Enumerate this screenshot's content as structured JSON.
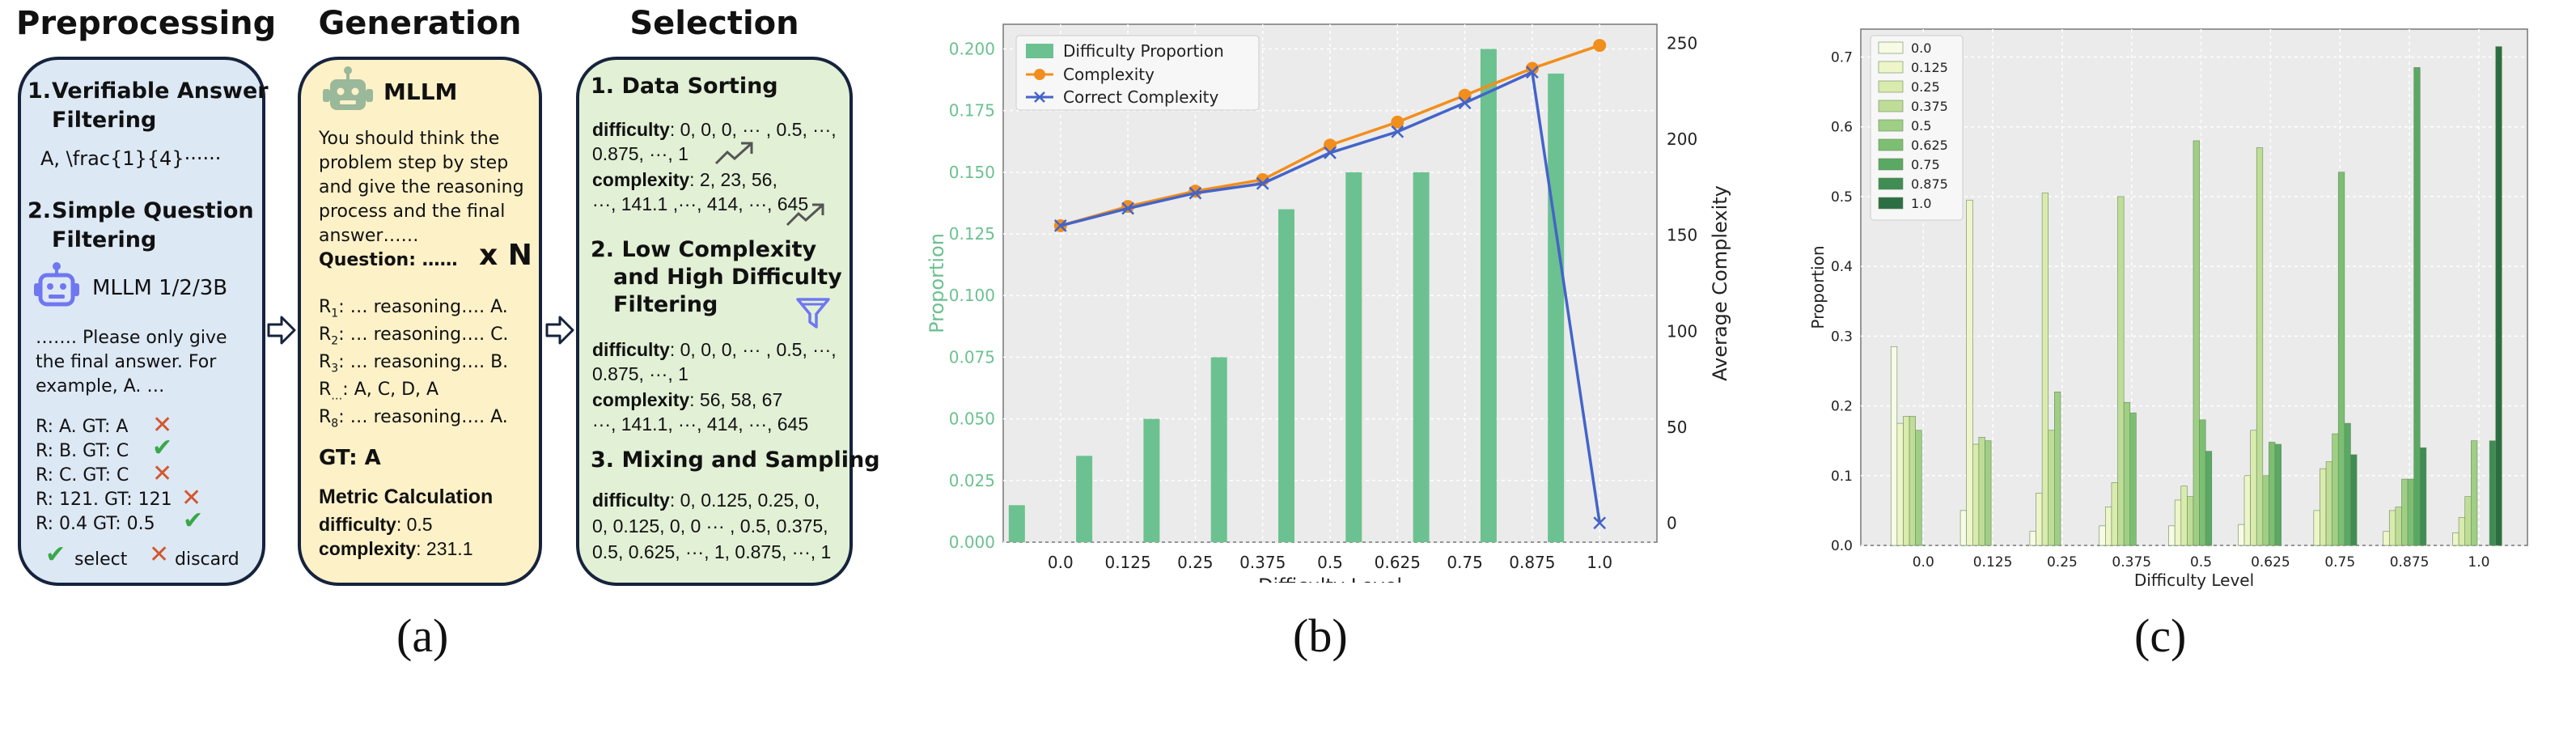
{
  "headings": {
    "preprocessing": "Preprocessing",
    "generation": "Generation",
    "selection": "Selection"
  },
  "captions": {
    "a": "(a)",
    "b": "(b)",
    "c": "(c)"
  },
  "preprocessing": {
    "s1_num": "1.",
    "s1_title_1": "Verifiable Answer",
    "s1_title_2": "Filtering",
    "s1_example": "A, \\frac{1}{4}······",
    "s2_num": "2.",
    "s2_title_1": "Simple Question",
    "s2_title_2": "Filtering",
    "model": "MLLM 1/2/3B",
    "prompt_1": "……. Please only give",
    "prompt_2": "the final answer. For",
    "prompt_3": "example, A. …",
    "results": [
      {
        "text": "R: A. GT: A",
        "mark": "✕"
      },
      {
        "text": "R: B. GT: C",
        "mark": "✔"
      },
      {
        "text": "R: C. GT: C",
        "mark": "✕"
      },
      {
        "text": "R: 121. GT: 121",
        "mark": "✕"
      },
      {
        "text": "R: 0.4 GT: 0.5",
        "mark": "✔"
      }
    ],
    "legend_select": "select",
    "legend_discard": "discard",
    "check_mark": "✔",
    "cross_mark": "✕"
  },
  "generation": {
    "model": "MLLM",
    "prompt": [
      "You should think the",
      "problem step by step",
      "and give the reasoning",
      "process and the final",
      "answer……"
    ],
    "question": "Question: ……",
    "times": "x N",
    "responses": [
      {
        "r": "R",
        "sub": "1",
        "text": ": … reasoning…. A."
      },
      {
        "r": "R",
        "sub": "2",
        "text": ": … reasoning…. C."
      },
      {
        "r": "R",
        "sub": "3",
        "text": ": … reasoning…. B."
      },
      {
        "r": "R",
        "sub": "…",
        "text": ":     A, C, D, A"
      },
      {
        "r": "R",
        "sub": "8",
        "text": ": … reasoning…. A."
      }
    ],
    "gt": "GT: A",
    "metric": "Metric Calculation",
    "difficulty_label": "difficulty",
    "difficulty_value": ": 0.5",
    "complexity_label": "complexity",
    "complexity_value": ": 231.1"
  },
  "selection": {
    "s1": "1. Data Sorting",
    "d1_label": "difficulty",
    "d1_l1": ": 0, 0, 0, ··· , 0.5, ···,",
    "d1_l2": "0.875, ···, 1",
    "c1_label": "complexity",
    "c1_l1": ": 2, 23, 56,",
    "c1_l2": "···, 141.1 ,···, 414, ···, 645",
    "s2_1": "2. Low Complexity",
    "s2_2": "and High Difficulty",
    "s2_3": "Filtering",
    "d2_label": "difficulty",
    "d2_l1": ": 0, 0, 0, ··· , 0.5, ···,",
    "d2_l2": "0.875, ···, 1",
    "c2_label": "complexity",
    "c2_l1": ": 56, 58, 67",
    "c2_l2": "···, 141.1, ···, 414, ···, 645",
    "s3": "3. Mixing and Sampling",
    "d3_label": "difficulty",
    "d3_l1": ": 0, 0.125, 0.25, 0,",
    "d3_l2": "0, 0.125, 0, 0 ··· , 0.5, 0.375,",
    "d3_l3": "0.5, 0.625, ···, 1, 0.875, ···, 1"
  },
  "chart_data": [
    {
      "type": "bar",
      "title": "",
      "xlabel": "Difficulty Level",
      "ylabel": "Proportion",
      "y2label": "Average Complexity",
      "categories": [
        "0.0",
        "0.125",
        "0.25",
        "0.375",
        "0.5",
        "0.625",
        "0.75",
        "0.875",
        "1.0"
      ],
      "ylim": [
        0,
        0.21
      ],
      "y2lim": [
        -10,
        260
      ],
      "yticks": [
        "0.000",
        "0.025",
        "0.050",
        "0.075",
        "0.100",
        "0.125",
        "0.150",
        "0.175",
        "0.200"
      ],
      "y2ticks": [
        "0",
        "50",
        "100",
        "150",
        "200",
        "250"
      ],
      "legend_position": "top-left",
      "grid": true,
      "series": [
        {
          "name": "Difficulty Proportion",
          "kind": "bar",
          "axis": "left",
          "color": "#6cc190",
          "values": [
            0.015,
            0.035,
            0.05,
            0.075,
            0.135,
            0.15,
            0.15,
            0.2,
            0.19
          ]
        },
        {
          "name": "Complexity",
          "kind": "line",
          "axis": "right",
          "color": "#f28e1c",
          "values": [
            155,
            165,
            173,
            179,
            197,
            209,
            223,
            237,
            249
          ]
        },
        {
          "name": "Correct Complexity",
          "kind": "line",
          "axis": "right",
          "color": "#4364c9",
          "values": [
            155,
            164,
            172,
            177,
            193,
            204,
            219,
            235,
            0
          ]
        }
      ]
    },
    {
      "type": "bar",
      "title": "",
      "xlabel": "Difficulty Level",
      "ylabel": "Proportion",
      "categories": [
        "0.0",
        "0.125",
        "0.25",
        "0.375",
        "0.5",
        "0.625",
        "0.75",
        "0.875",
        "1.0"
      ],
      "ylim": [
        0,
        0.74
      ],
      "yticks": [
        "0.0",
        "0.1",
        "0.2",
        "0.3",
        "0.4",
        "0.5",
        "0.6",
        "0.7"
      ],
      "legend_position": "top-left",
      "grid": true,
      "series": [
        {
          "name": "0.0",
          "color": "#f7fbe6",
          "values": [
            0.285,
            0.05,
            0.02,
            0.028,
            0.028,
            0.03,
            0.0,
            0.0,
            0.0
          ]
        },
        {
          "name": "0.125",
          "color": "#eef5c9",
          "values": [
            0.175,
            0.495,
            0.075,
            0.055,
            0.065,
            0.1,
            0.05,
            0.02,
            0.018
          ]
        },
        {
          "name": "0.25",
          "color": "#d9ebad",
          "values": [
            0.185,
            0.145,
            0.505,
            0.09,
            0.085,
            0.165,
            0.11,
            0.05,
            0.04
          ]
        },
        {
          "name": "0.375",
          "color": "#bfdd97",
          "values": [
            0.185,
            0.155,
            0.165,
            0.5,
            0.07,
            0.57,
            0.12,
            0.055,
            0.07
          ]
        },
        {
          "name": "0.5",
          "color": "#9fcf84",
          "values": [
            0.165,
            0.15,
            0.22,
            0.205,
            0.58,
            0.1,
            0.16,
            0.095,
            0.15
          ]
        },
        {
          "name": "0.625",
          "color": "#7cbf73",
          "values": [
            0.0,
            0.0,
            0.0,
            0.19,
            0.18,
            0.148,
            0.535,
            0.095,
            0.0
          ]
        },
        {
          "name": "0.75",
          "color": "#59a864",
          "values": [
            0.0,
            0.0,
            0.0,
            0.0,
            0.135,
            0.145,
            0.175,
            0.685,
            0.0
          ]
        },
        {
          "name": "0.875",
          "color": "#3f8c55",
          "values": [
            0.0,
            0.0,
            0.0,
            0.0,
            0.0,
            0.0,
            0.13,
            0.14,
            0.15
          ]
        },
        {
          "name": "1.0",
          "color": "#2c6e44",
          "values": [
            0.0,
            0.0,
            0.0,
            0.0,
            0.0,
            0.0,
            0.0,
            0.0,
            0.715
          ]
        }
      ]
    }
  ]
}
